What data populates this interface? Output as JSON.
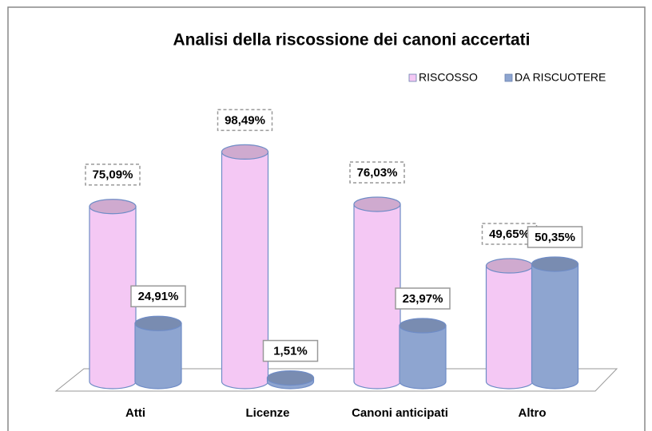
{
  "chart_data": {
    "type": "bar3d",
    "title": "Analisi della riscossione dei canoni accertati",
    "categories": [
      "Atti",
      "Licenze",
      "Canoni anticipati",
      "Altro"
    ],
    "series": [
      {
        "name": "RISCOSSO",
        "color": "#f4c8f4",
        "values": [
          75.09,
          98.49,
          76.03,
          49.65
        ],
        "value_labels": [
          "75,09%",
          "98,49%",
          "76,03%",
          "49,65%"
        ]
      },
      {
        "name": "DA RISCUOTERE",
        "color": "#8ea5d0",
        "values": [
          24.91,
          1.51,
          23.97,
          50.35
        ],
        "value_labels": [
          "24,91%",
          "1,51%",
          "23,97%",
          "50,35%"
        ]
      }
    ],
    "ylim": [
      0,
      100
    ],
    "legend": "top-right"
  }
}
